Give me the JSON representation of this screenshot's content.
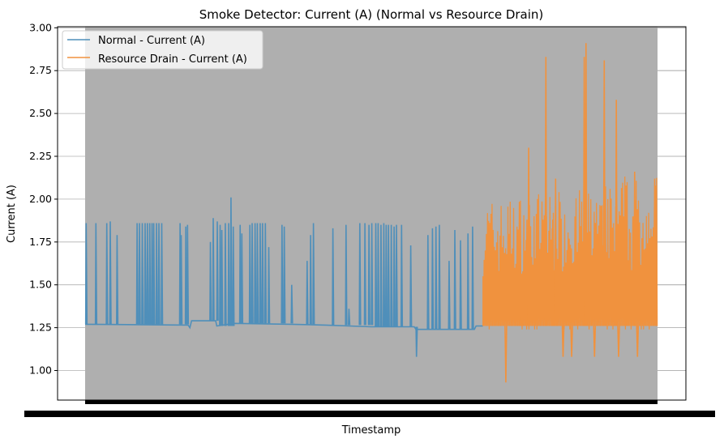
{
  "chart_data": {
    "type": "line",
    "title": "Smoke Detector: Current (A) (Normal vs Resource Drain)",
    "xlabel": "Timestamp",
    "ylabel": "Current (A)",
    "ylim": [
      0.82,
      3.0
    ],
    "yticks": [
      "1.00",
      "1.25",
      "1.50",
      "1.75",
      "2.00",
      "2.25",
      "2.50",
      "2.75",
      "3.00"
    ],
    "ytick_values": [
      1.0,
      1.25,
      1.5,
      1.75,
      2.0,
      2.25,
      2.5,
      2.75,
      3.0
    ],
    "grid": "y",
    "legend": "upper-left",
    "x_tick_labels_note": "dense overlapping timestamp ticks (unreadable)",
    "colors": {
      "normal": "#4f8fba",
      "drain": "#f0923e",
      "background_band": "#afafaf"
    },
    "series": [
      {
        "name": "Normal - Current (A)",
        "baseline": [
          [
            0,
            1.27
          ],
          [
            0.18,
            1.265
          ],
          [
            0.183,
            1.25
          ],
          [
            0.186,
            1.29
          ],
          [
            0.228,
            1.29
          ],
          [
            0.23,
            1.26
          ],
          [
            0.26,
            1.275
          ],
          [
            0.36,
            1.27
          ],
          [
            0.42,
            1.265
          ],
          [
            0.5,
            1.255
          ],
          [
            0.575,
            1.255
          ],
          [
            0.578,
            1.24
          ],
          [
            0.68,
            1.24
          ],
          [
            0.683,
            1.26
          ],
          [
            0.695,
            1.26
          ]
        ],
        "spikes": [
          [
            0.001,
            1.86
          ],
          [
            0.018,
            1.86
          ],
          [
            0.037,
            1.86
          ],
          [
            0.043,
            1.87
          ],
          [
            0.055,
            1.79
          ],
          [
            0.09,
            1.86
          ],
          [
            0.094,
            1.86
          ],
          [
            0.099,
            1.86
          ],
          [
            0.104,
            1.86
          ],
          [
            0.108,
            1.86
          ],
          [
            0.112,
            1.86
          ],
          [
            0.116,
            1.86
          ],
          [
            0.119,
            1.86
          ],
          [
            0.124,
            1.86
          ],
          [
            0.128,
            1.86
          ],
          [
            0.133,
            1.86
          ],
          [
            0.165,
            1.86
          ],
          [
            0.167,
            1.79
          ],
          [
            0.175,
            1.84
          ],
          [
            0.178,
            1.85
          ],
          [
            0.218,
            1.75
          ],
          [
            0.223,
            1.89
          ],
          [
            0.23,
            1.87
          ],
          [
            0.235,
            1.85
          ],
          [
            0.238,
            1.82
          ],
          [
            0.244,
            1.86
          ],
          [
            0.25,
            1.86
          ],
          [
            0.254,
            2.01
          ],
          [
            0.258,
            1.84
          ],
          [
            0.27,
            1.85
          ],
          [
            0.273,
            1.8
          ],
          [
            0.287,
            1.85
          ],
          [
            0.291,
            1.86
          ],
          [
            0.296,
            1.86
          ],
          [
            0.3,
            1.86
          ],
          [
            0.305,
            1.86
          ],
          [
            0.309,
            1.86
          ],
          [
            0.314,
            1.86
          ],
          [
            0.32,
            1.72
          ],
          [
            0.343,
            1.85
          ],
          [
            0.347,
            1.84
          ],
          [
            0.36,
            1.5
          ],
          [
            0.387,
            1.64
          ],
          [
            0.393,
            1.79
          ],
          [
            0.398,
            1.86
          ],
          [
            0.432,
            1.83
          ],
          [
            0.455,
            1.85
          ],
          [
            0.46,
            1.36
          ],
          [
            0.479,
            1.86
          ],
          [
            0.488,
            1.86
          ],
          [
            0.495,
            1.85
          ],
          [
            0.5,
            1.86
          ],
          [
            0.507,
            1.86
          ],
          [
            0.511,
            1.86
          ],
          [
            0.516,
            1.85
          ],
          [
            0.521,
            1.86
          ],
          [
            0.525,
            1.85
          ],
          [
            0.529,
            1.85
          ],
          [
            0.534,
            1.85
          ],
          [
            0.539,
            1.84
          ],
          [
            0.543,
            1.85
          ],
          [
            0.552,
            1.85
          ],
          [
            0.568,
            1.73
          ],
          [
            0.578,
            1.08
          ],
          [
            0.598,
            1.79
          ],
          [
            0.606,
            1.83
          ],
          [
            0.612,
            1.84
          ],
          [
            0.618,
            1.85
          ],
          [
            0.635,
            1.64
          ],
          [
            0.645,
            1.82
          ],
          [
            0.655,
            1.76
          ],
          [
            0.668,
            1.8
          ],
          [
            0.676,
            1.84
          ]
        ]
      },
      {
        "name": "Resource Drain - Current (A)",
        "start": 0.695,
        "base": 1.26,
        "range": [
          1.08,
          2.12
        ],
        "spikes": [
          [
            0.735,
            0.93
          ],
          [
            0.76,
            1.87
          ],
          [
            0.772,
            1.88
          ],
          [
            0.775,
            2.3
          ],
          [
            0.805,
            2.83
          ],
          [
            0.817,
            1.88
          ],
          [
            0.822,
            2.12
          ],
          [
            0.835,
            1.08
          ],
          [
            0.85,
            1.08
          ],
          [
            0.872,
            2.83
          ],
          [
            0.875,
            2.91
          ],
          [
            0.89,
            1.08
          ],
          [
            0.907,
            2.81
          ],
          [
            0.928,
            2.58
          ],
          [
            0.932,
            1.08
          ],
          [
            0.945,
            2.08
          ],
          [
            0.96,
            2.16
          ],
          [
            0.965,
            1.08
          ],
          [
            0.995,
            2.12
          ]
        ]
      }
    ]
  }
}
